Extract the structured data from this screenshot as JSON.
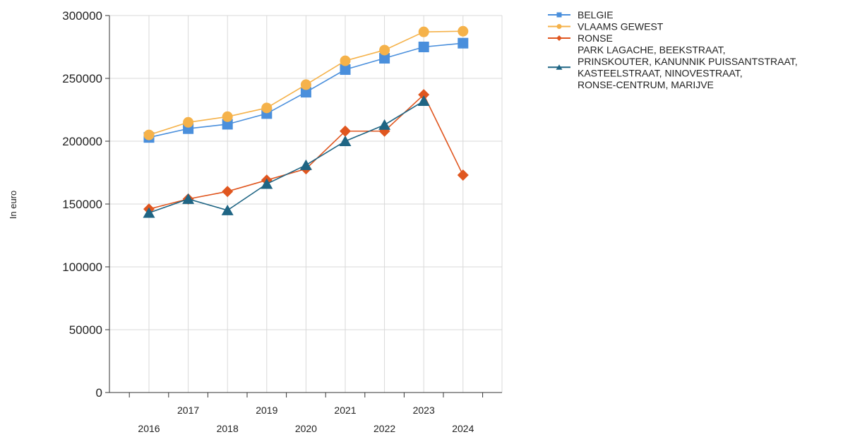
{
  "chart_data": {
    "type": "line",
    "ylabel": "In euro",
    "xlabel": "",
    "title": "",
    "ylim": [
      0,
      300000
    ],
    "yticks": [
      0,
      50000,
      100000,
      150000,
      200000,
      250000,
      300000
    ],
    "ytick_labels": [
      "0",
      "50000",
      "100000",
      "150000",
      "200000",
      "250000",
      "300000"
    ],
    "categories": [
      "2016",
      "2017",
      "2018",
      "2019",
      "2020",
      "2021",
      "2022",
      "2023",
      "2024"
    ],
    "grid": true,
    "legend_position": "top-right",
    "series": [
      {
        "name": "BELGIE",
        "color": "#4a8fdc",
        "marker": "square",
        "values": [
          203000,
          210000,
          213500,
          222000,
          239000,
          257000,
          266000,
          275000,
          278000
        ]
      },
      {
        "name": "VLAAMS GEWEST",
        "color": "#f5b24a",
        "marker": "circle",
        "values": [
          205000,
          215000,
          219500,
          226500,
          245000,
          264000,
          272500,
          287000,
          287500
        ]
      },
      {
        "name": "RONSE",
        "color": "#e0561f",
        "marker": "diamond",
        "values": [
          146000,
          154000,
          160000,
          169000,
          178000,
          208000,
          208000,
          237000,
          173000
        ]
      },
      {
        "name": "PARK LAGACHE, BEEKSTRAAT, PRINSKOUTER, KANUNNIK PUISSANTSTRAAT, KASTEELSTRAAT, NINOVESTRAAT, RONSE-CENTRUM, MARIJVE",
        "name_lines": [
          "PARK LAGACHE, BEEKSTRAAT,",
          "PRINSKOUTER, KANUNNIK PUISSANTSTRAAT,",
          "KASTEELSTRAAT, NINOVESTRAAT,",
          "RONSE-CENTRUM, MARIJVE"
        ],
        "color": "#1f6584",
        "marker": "triangle",
        "values": [
          143000,
          154000,
          145000,
          166000,
          181000,
          200000,
          213000,
          232000,
          null
        ]
      }
    ]
  }
}
